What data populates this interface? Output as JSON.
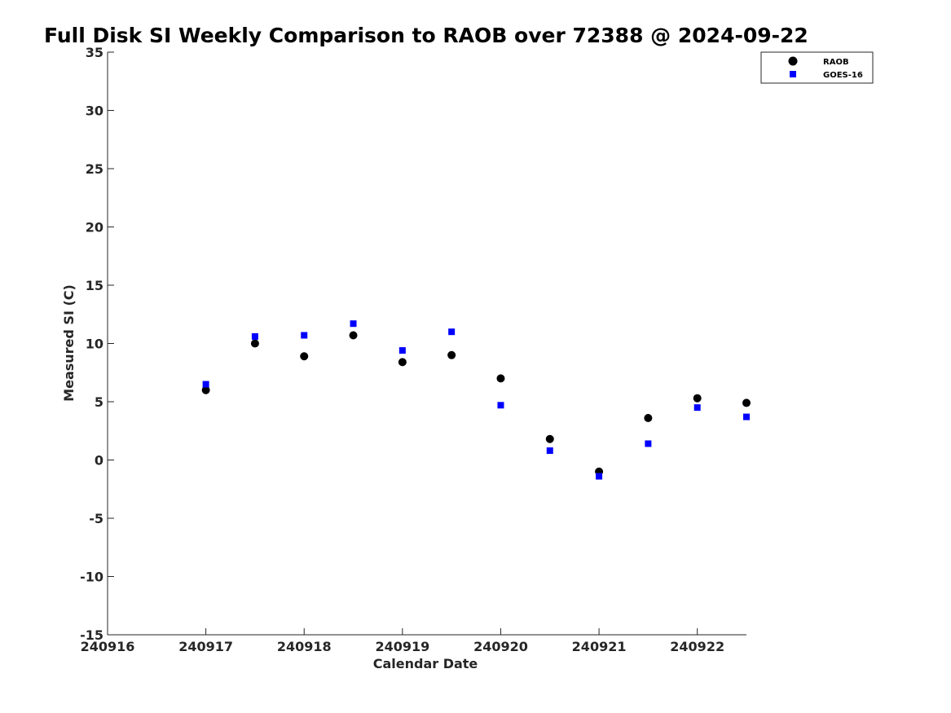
{
  "chart_data": {
    "type": "scatter",
    "title": "Full Disk SI Weekly Comparison to RAOB over 72388 @ 2024-09-22",
    "xlabel": "Calendar Date",
    "ylabel": "Measured SI (C)",
    "xlim": [
      240916,
      240922.5
    ],
    "ylim": [
      -15,
      35
    ],
    "xticks": [
      240916,
      240917,
      240918,
      240919,
      240920,
      240921,
      240922
    ],
    "yticks": [
      -15,
      -10,
      -5,
      0,
      5,
      10,
      15,
      20,
      25,
      30,
      35
    ],
    "grid": false,
    "legend_position": "top-right",
    "series": [
      {
        "name": "RAOB",
        "marker": "circle",
        "color": "#000000",
        "points": [
          {
            "x": 240917.0,
            "y": 6.0
          },
          {
            "x": 240917.5,
            "y": 10.0
          },
          {
            "x": 240918.0,
            "y": 8.9
          },
          {
            "x": 240918.5,
            "y": 10.7
          },
          {
            "x": 240919.0,
            "y": 8.4
          },
          {
            "x": 240919.5,
            "y": 9.0
          },
          {
            "x": 240920.0,
            "y": 7.0
          },
          {
            "x": 240920.5,
            "y": 1.8
          },
          {
            "x": 240921.0,
            "y": -1.0
          },
          {
            "x": 240921.5,
            "y": 3.6
          },
          {
            "x": 240922.0,
            "y": 5.3
          },
          {
            "x": 240922.5,
            "y": 4.9
          }
        ]
      },
      {
        "name": "GOES-16",
        "marker": "square",
        "color": "#0000ff",
        "points": [
          {
            "x": 240917.0,
            "y": 6.5
          },
          {
            "x": 240917.5,
            "y": 10.6
          },
          {
            "x": 240918.0,
            "y": 10.7
          },
          {
            "x": 240918.5,
            "y": 11.7
          },
          {
            "x": 240919.0,
            "y": 9.4
          },
          {
            "x": 240919.5,
            "y": 11.0
          },
          {
            "x": 240920.0,
            "y": 4.7
          },
          {
            "x": 240920.5,
            "y": 0.8
          },
          {
            "x": 240921.0,
            "y": -1.4
          },
          {
            "x": 240921.5,
            "y": 1.4
          },
          {
            "x": 240922.0,
            "y": 4.5
          },
          {
            "x": 240922.5,
            "y": 3.7
          }
        ]
      }
    ]
  }
}
